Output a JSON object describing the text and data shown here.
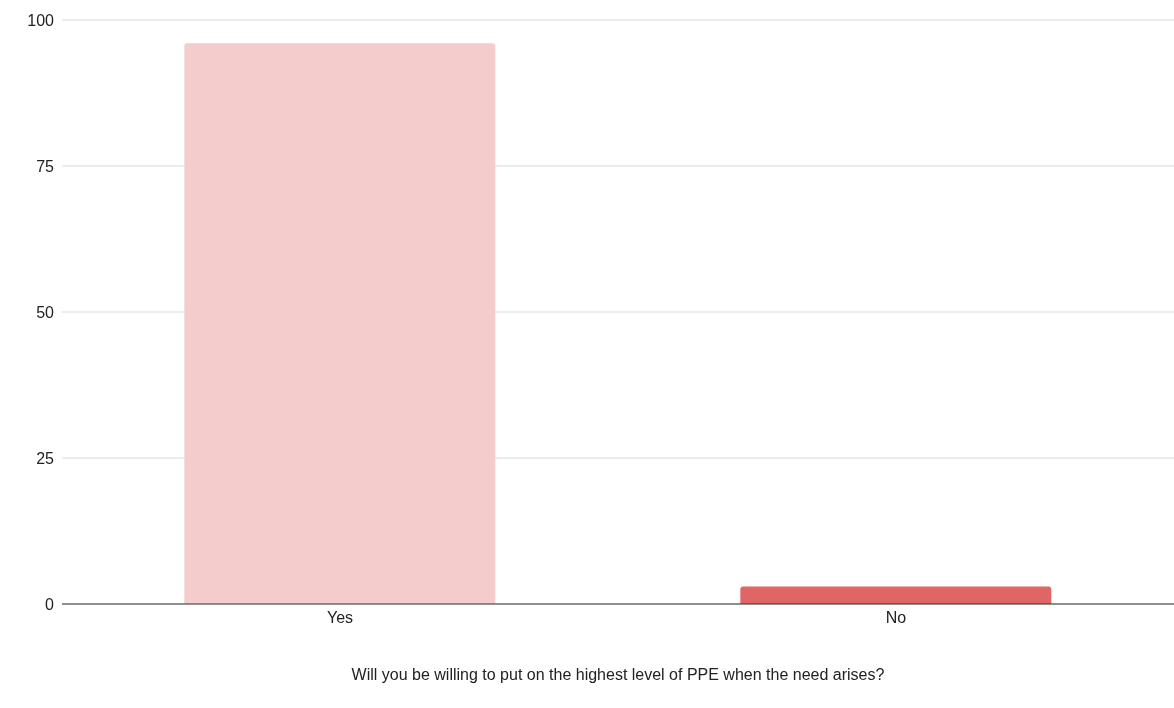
{
  "chart_data": {
    "type": "bar",
    "xlabel": "Will you be willing to put on the highest level of PPE when the need arises?",
    "categories": [
      "Yes",
      "No"
    ],
    "values": [
      96,
      3
    ],
    "colors": [
      "#f4cccc",
      "#e06666"
    ],
    "ylim": [
      0,
      100
    ],
    "yticks": [
      0,
      25,
      50,
      75,
      100
    ],
    "grid": "y"
  }
}
